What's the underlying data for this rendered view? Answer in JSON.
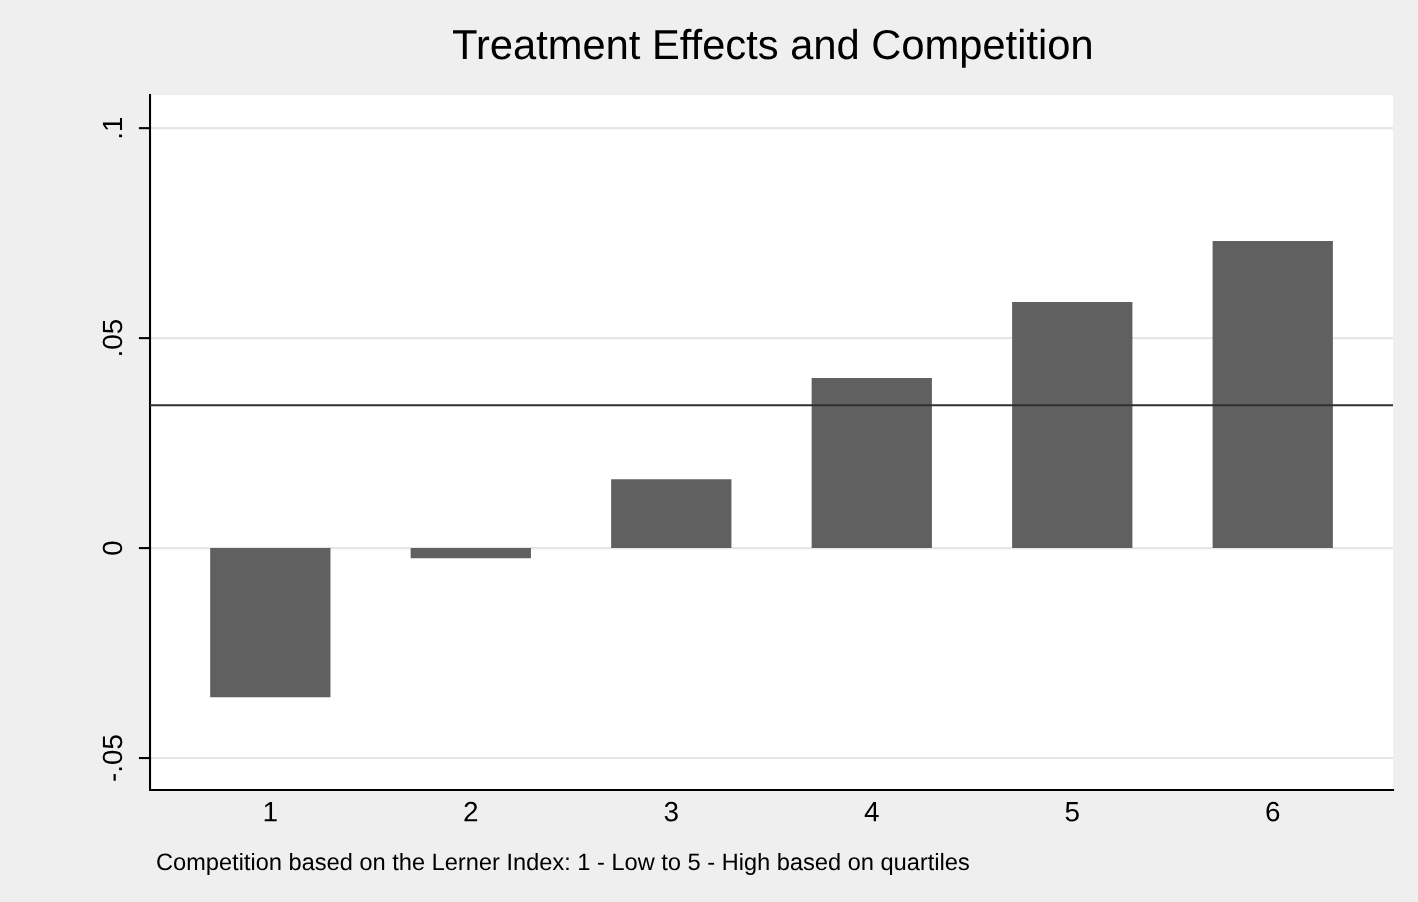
{
  "chart_data": {
    "type": "bar",
    "title": "Treatment Effects and Competition",
    "categories": [
      "1",
      "2",
      "3",
      "4",
      "5",
      "6"
    ],
    "values": [
      -0.0355,
      -0.0024,
      0.0164,
      0.0405,
      0.0586,
      0.0731
    ],
    "color": "#606060",
    "ylim": [
      -0.0576,
      0.1079
    ],
    "yticks": [
      {
        "value": -0.05,
        "label": "-.05"
      },
      0,
      {
        "value": 0.05,
        "label": ".05"
      },
      {
        "value": 0.1,
        "label": ".1"
      }
    ],
    "grid": "y",
    "ref_lines": [
      {
        "axis": "y",
        "value": 0.034,
        "color": "#303030",
        "line_style": "solid"
      }
    ],
    "annotations": [
      "Competition based on the Lerner Index: 1 - Low to 5 - High based on quartiles"
    ]
  }
}
